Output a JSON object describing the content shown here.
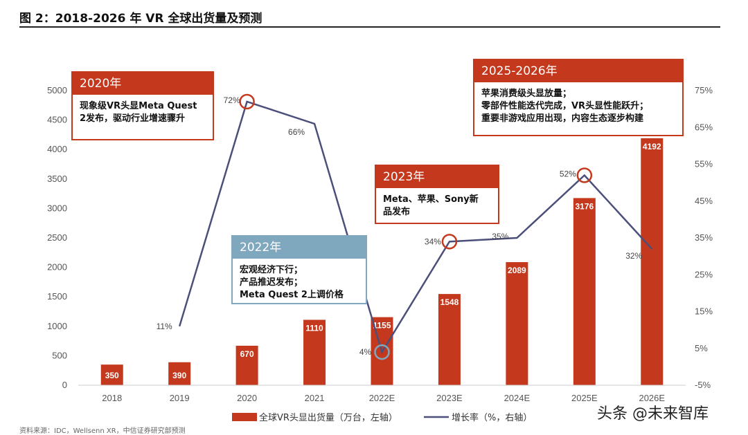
{
  "title": "图 2：2018-2026 年 VR 全球出货量及预测",
  "watermark": "头条 @未来智库",
  "source": "资料来源：IDC，Wellsenn XR，中信证券研究部预测",
  "colors": {
    "bar": "#c4391e",
    "line": "#4b4f7a",
    "annotation_red": "#c4391e",
    "annotation_blue": "#7fa8bf",
    "circle_red": "#c4391e",
    "circle_blue": "#7fa8bf"
  },
  "annotations": [
    {
      "id": "a2020",
      "style": "red",
      "header": "2020年",
      "body": "现象级VR头显Meta Quest\n2发布，驱动行业增速骤升"
    },
    {
      "id": "a2022",
      "style": "blue",
      "header": "2022年",
      "body": "宏观经济下行；\n产品推迟发布；\nMeta Quest 2上调价格"
    },
    {
      "id": "a2023",
      "style": "red",
      "header": "2023年",
      "body": "Meta、苹果、Sony新\n品发布"
    },
    {
      "id": "a2025",
      "style": "red",
      "header": "2025-2026年",
      "body": "苹果消费级头显放量；\n零部件性能迭代完成，VR头显性能跃升；\n重要非游戏应用出现，内容生态逐步构建"
    }
  ],
  "chart_data": {
    "type": "bar",
    "categories": [
      "2018",
      "2019",
      "2020",
      "2021",
      "2022E",
      "2023E",
      "2024E",
      "2025E",
      "2026E"
    ],
    "series": [
      {
        "name": "全球VR头显出货量（万台，左轴）",
        "type": "bar",
        "axis": "left",
        "values": [
          350,
          390,
          670,
          1110,
          1155,
          1548,
          2089,
          3176,
          4192
        ],
        "labels": [
          "350",
          "390",
          "670",
          "1110",
          "1155",
          "1548",
          "2089",
          "3176",
          "4192"
        ]
      },
      {
        "name": "增长率（%，右轴）",
        "type": "line",
        "axis": "right",
        "values": [
          null,
          11,
          72,
          66,
          4,
          34,
          35,
          52,
          32
        ],
        "labels": [
          "",
          "11%",
          "72%",
          "66%",
          "4%",
          "34%",
          "35%",
          "52%",
          "32%"
        ],
        "highlighted": [
          "2020",
          "2022E",
          "2023E",
          "2025E"
        ]
      }
    ],
    "left_axis": {
      "ylim": [
        0,
        5000
      ],
      "ticks": [
        "0",
        "500",
        "1000",
        "1500",
        "2000",
        "2500",
        "3000",
        "3500",
        "4000",
        "4500",
        "5000"
      ]
    },
    "right_axis": {
      "ylim": [
        -5,
        75
      ],
      "ticks": [
        "-5%",
        "5%",
        "15%",
        "25%",
        "35%",
        "45%",
        "55%",
        "65%",
        "75%"
      ]
    },
    "grid": false,
    "legend_position": "bottom"
  }
}
